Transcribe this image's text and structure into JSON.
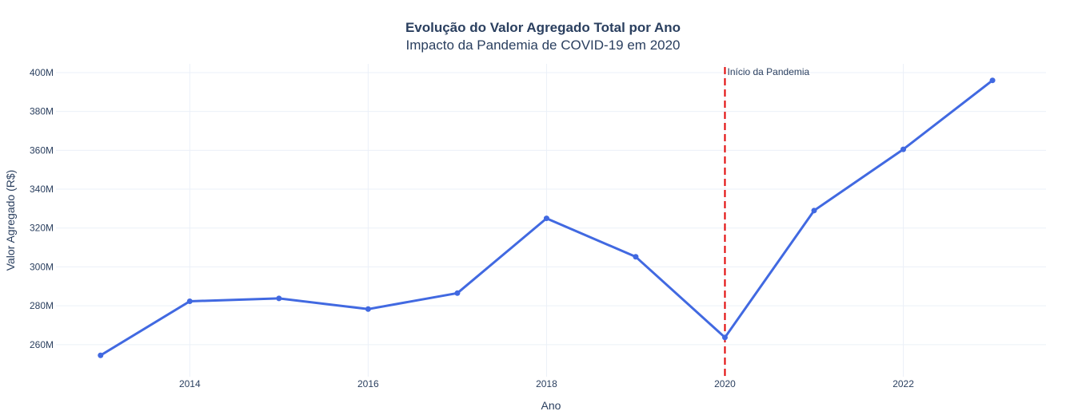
{
  "chart_data": {
    "type": "line",
    "title": "Evolução do Valor Agregado Total por Ano",
    "subtitle": "Impacto da Pandemia de COVID-19 em 2020",
    "xlabel": "Ano",
    "ylabel": "Valor Agregado (R$)",
    "x": [
      2013,
      2014,
      2015,
      2016,
      2017,
      2018,
      2019,
      2020,
      2021,
      2022,
      2023
    ],
    "values": [
      254.5,
      282.3,
      283.8,
      278.3,
      286.5,
      325.0,
      305.2,
      263.7,
      329.0,
      360.5,
      396.0
    ],
    "x_ticks": [
      "2014",
      "2016",
      "2018",
      "2020",
      "2022"
    ],
    "y_ticks": [
      "260M",
      "280M",
      "300M",
      "320M",
      "340M",
      "360M",
      "380M",
      "400M"
    ],
    "xlim": [
      2012.5,
      2023.6
    ],
    "ylim": [
      243.5,
      404.5
    ],
    "line_color": "#4169e1",
    "grid": true,
    "annotation": {
      "x": 2020,
      "text": "Início da Pandemia",
      "color": "#e00000",
      "style": "dashed"
    }
  }
}
